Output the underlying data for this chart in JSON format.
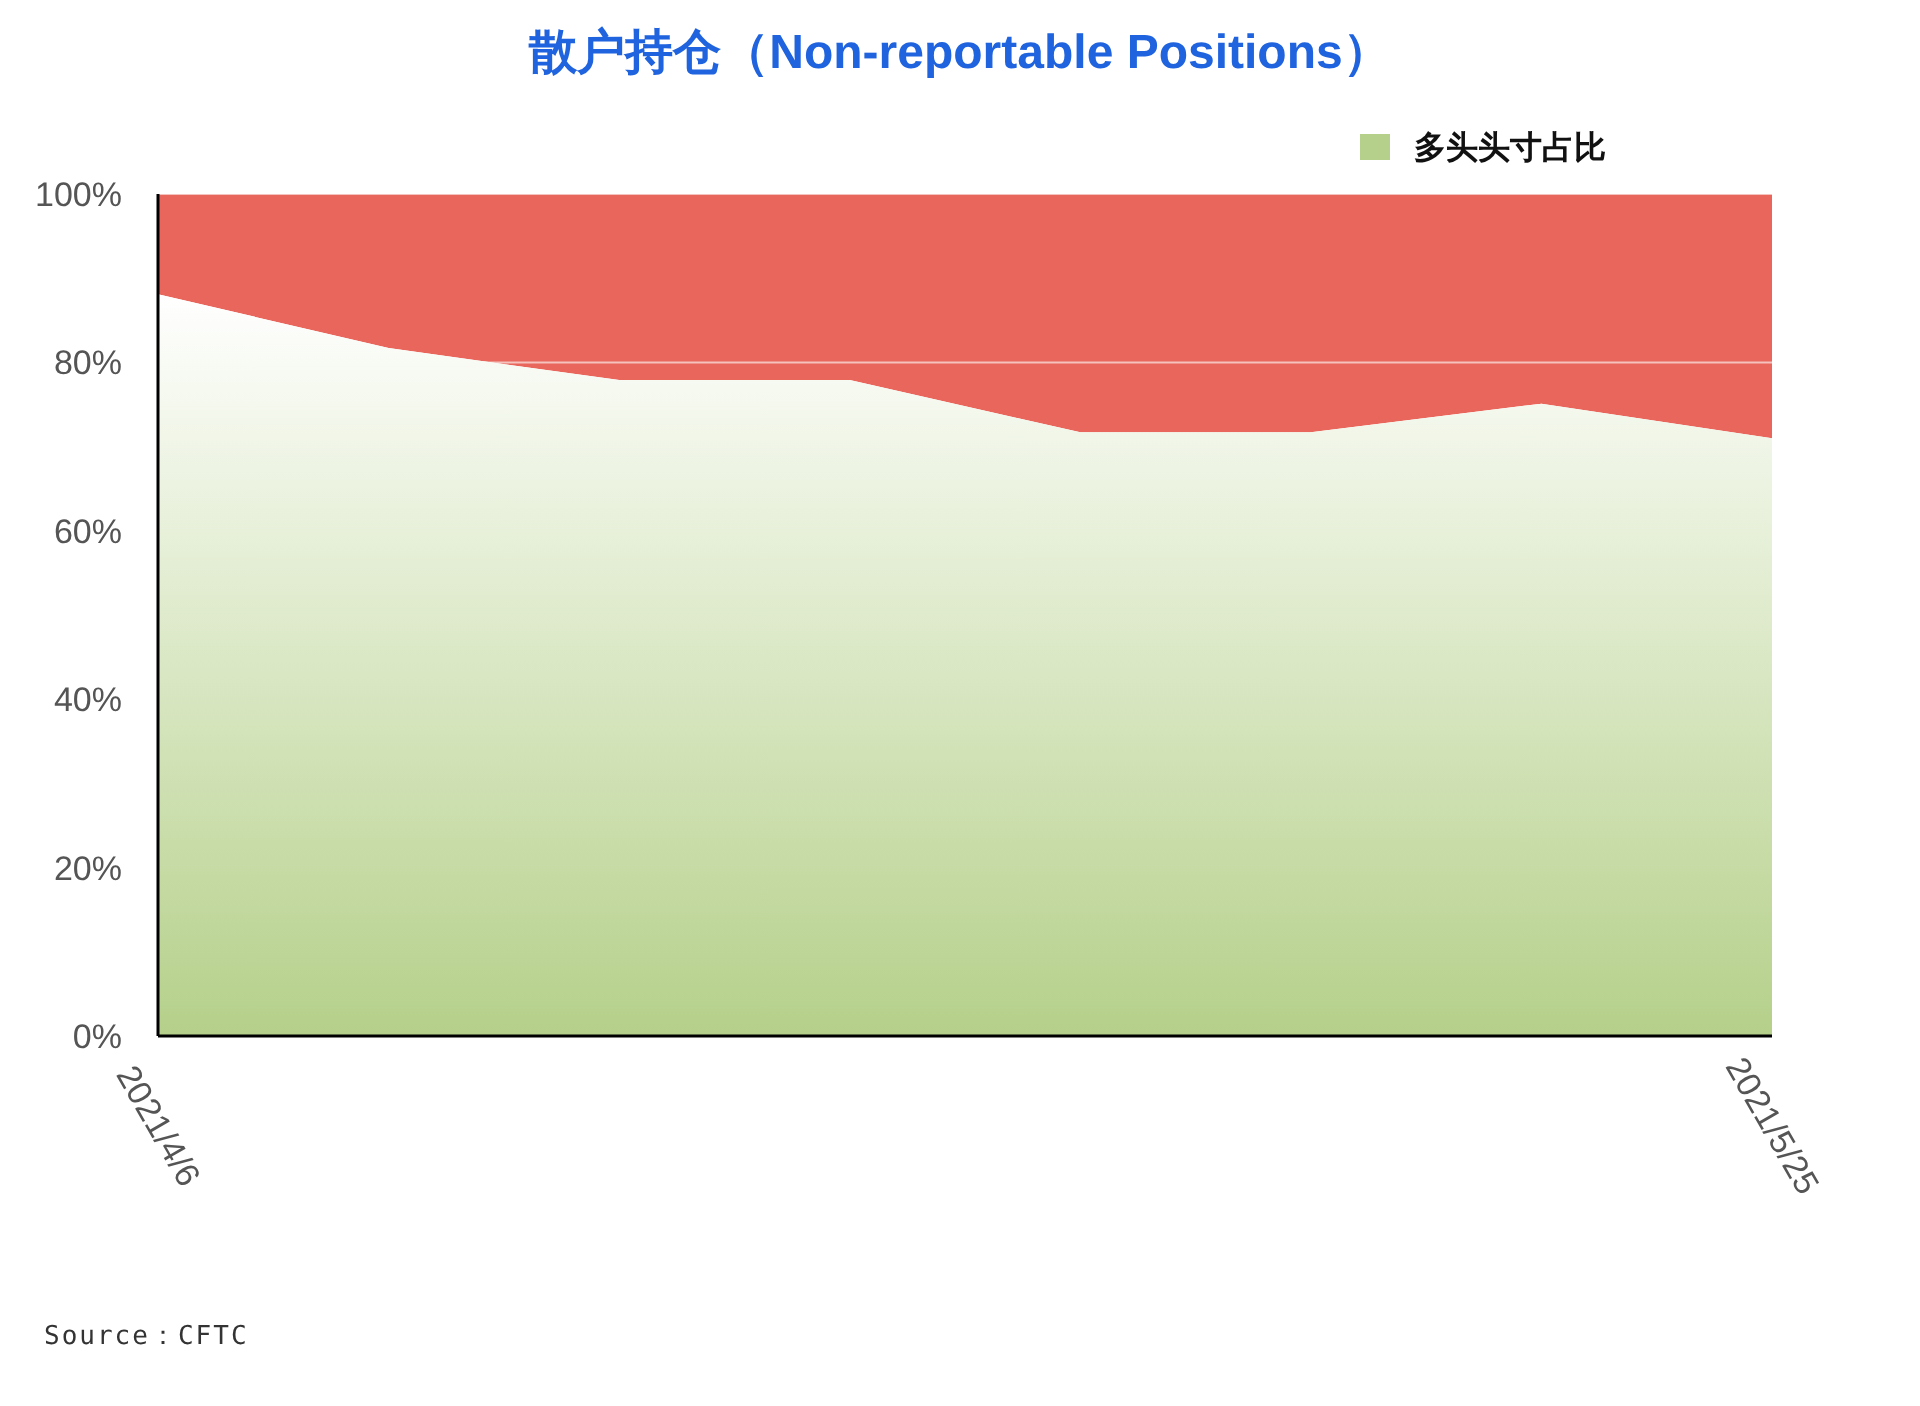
{
  "chart_data": {
    "type": "area",
    "title": "散户持仓（Non-reportable Positions）",
    "stacked": true,
    "x": [
      "2021-04-06",
      "2021-04-13",
      "2021-04-20",
      "2021-04-27",
      "2021-05-04",
      "2021-05-11",
      "2021-05-18",
      "2021-05-25"
    ],
    "series": [
      {
        "name": "多头头寸占比",
        "color": "#b5d08a",
        "values": [
          88.1,
          81.7,
          77.9,
          77.9,
          71.7,
          71.7,
          75.1,
          71.0
        ]
      },
      {
        "color": "#e9665c",
        "values": [
          11.9,
          18.3,
          22.1,
          22.1,
          28.3,
          28.3,
          24.9,
          29.0
        ]
      }
    ],
    "xlim": [
      "2021-04-06",
      "2021-05-25"
    ],
    "xticks": [
      {
        "value": "2021-04-06",
        "label": "2021/4/6"
      },
      {
        "value": "2021-05-25",
        "label": "2021/5/25"
      }
    ],
    "ylim": [
      0,
      100
    ],
    "yticks": [
      {
        "value": 0,
        "label": "0%"
      },
      {
        "value": 20,
        "label": "20%"
      },
      {
        "value": 40,
        "label": "40%"
      },
      {
        "value": 60,
        "label": "60%"
      },
      {
        "value": 80,
        "label": "80%"
      },
      {
        "value": 100,
        "label": "100%"
      }
    ],
    "grid": "y",
    "legend": "top right",
    "annotations": [
      "Source：CFTC"
    ]
  }
}
